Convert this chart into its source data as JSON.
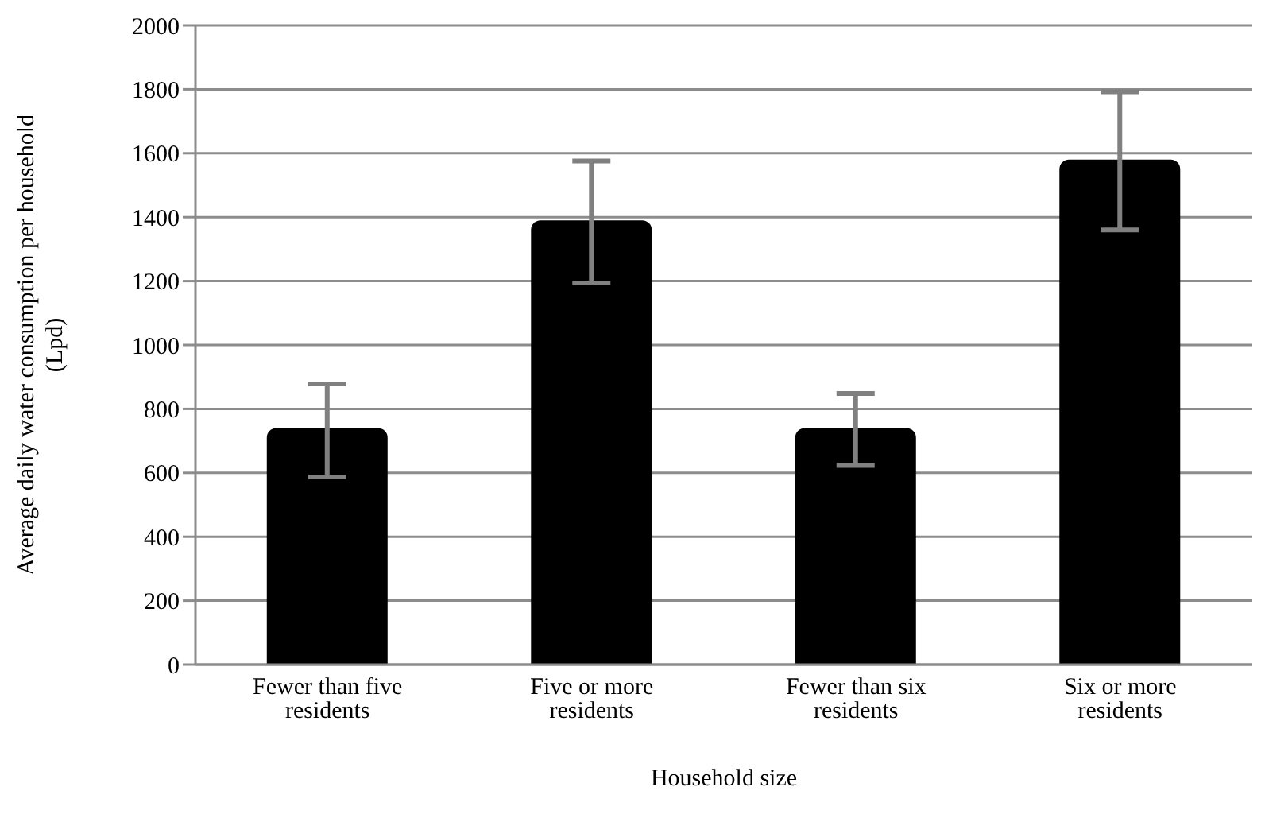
{
  "chart_data": {
    "type": "bar",
    "xlabel": "Household size",
    "ylabel": "Average daily water consumption per household (Lpd)",
    "categories": [
      "Fewer than five residents",
      "Five or more residents",
      "Fewer than six residents",
      "Six or more residents"
    ],
    "values": [
      740,
      1390,
      740,
      1580
    ],
    "color": "#000000",
    "errors": [
      [
        587,
        878
      ],
      [
        1194,
        1576
      ],
      [
        623,
        848
      ],
      [
        1360,
        1792
      ]
    ],
    "ylim": [
      0,
      2000
    ],
    "yticks": [
      0,
      200,
      400,
      600,
      800,
      1000,
      1200,
      1400,
      1600,
      1800,
      2000
    ],
    "grid": "y"
  }
}
